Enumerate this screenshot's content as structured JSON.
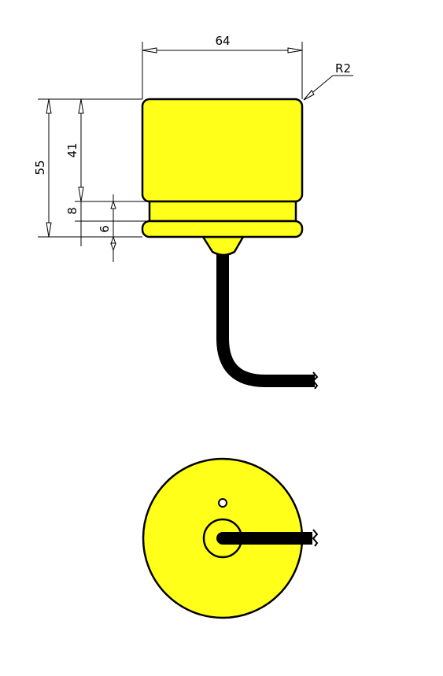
{
  "colors": {
    "body_fill": "#ffff1a",
    "line": "#000000",
    "background": "#ffffff"
  },
  "dimensions": {
    "width_label": "64",
    "radius_label": "R2",
    "total_height_label": "55",
    "body_height_label": "41",
    "groove_height_label": "8",
    "flange_height_label": "6"
  }
}
